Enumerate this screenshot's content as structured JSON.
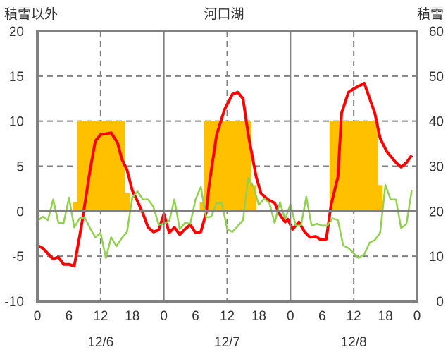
{
  "chart_data": {
    "type": "line",
    "title": "河口湖",
    "ylabel_left": "積雪以外",
    "ylabel_right": "積雪",
    "ylim_left": [
      -10,
      20
    ],
    "ylim_right": [
      0,
      60
    ],
    "yticks_left": [
      "20",
      "15",
      "10",
      "5",
      "0",
      "-5",
      "-10"
    ],
    "yticks_right": [
      "60",
      "50",
      "40",
      "30",
      "20",
      "10",
      "0"
    ],
    "x_range_hours": [
      0,
      72
    ],
    "xtick_labels": [
      "0",
      "6",
      "12",
      "18",
      "0",
      "6",
      "12",
      "18",
      "0",
      "6",
      "12",
      "18",
      "0"
    ],
    "date_labels": [
      "12/6",
      "12/7",
      "12/8"
    ],
    "grid": true,
    "colors": {
      "temperature": "#ff0000",
      "other": "#92d050",
      "bars": "#ffc000",
      "snow": "#7030a0",
      "axis": "#808080"
    },
    "bars": [
      {
        "start": 6.7,
        "end": 7.6,
        "value": 1
      },
      {
        "start": 7.6,
        "end": 16.6,
        "value": 10
      },
      {
        "start": 16.6,
        "end": 17.5,
        "value": 2
      },
      {
        "start": 30.8,
        "end": 31.6,
        "value": 1
      },
      {
        "start": 31.6,
        "end": 40.5,
        "value": 10
      },
      {
        "start": 40.5,
        "end": 41.5,
        "value": 2.9
      },
      {
        "start": 55.4,
        "end": 64.5,
        "value": 10
      },
      {
        "start": 64.5,
        "end": 65.4,
        "value": 2.9
      }
    ],
    "series": [
      {
        "name": "red",
        "x": [
          0,
          1,
          3,
          4,
          5,
          6,
          7,
          8.4,
          10,
          11,
          12,
          14,
          15.2,
          16,
          17,
          18,
          19,
          20,
          21,
          22,
          23,
          24,
          25,
          26,
          27,
          28,
          29,
          30,
          31,
          32,
          32.6,
          34,
          35.5,
          37,
          38,
          39,
          40,
          41.5,
          42.4,
          43.7,
          45,
          46,
          47,
          47.5,
          48.4,
          49.6,
          50.7,
          51.7,
          52.8,
          53.8,
          54.8,
          55.7,
          57,
          57.7,
          59,
          60,
          62,
          64,
          65,
          66.3,
          68,
          69,
          70,
          71
        ],
        "y": [
          -3.8,
          -4.1,
          -5.3,
          -5.1,
          -5.9,
          -5.9,
          -6.1,
          -1.5,
          4.6,
          7.8,
          8.5,
          8.7,
          7.6,
          5.8,
          4.6,
          2.3,
          1.1,
          -0.2,
          -1.8,
          -2.3,
          -2.1,
          -0.3,
          -2.4,
          -1.8,
          -2.6,
          -2,
          -1.5,
          -2.4,
          -2.3,
          -0.2,
          3,
          8.5,
          11.3,
          13,
          13.2,
          12.5,
          8.5,
          3.8,
          2,
          1.3,
          0.9,
          -0.4,
          -1.2,
          -0.9,
          -2,
          -1.2,
          -2.3,
          -2.9,
          -2.8,
          -3.2,
          -3.1,
          0.7,
          3.8,
          10.9,
          13.2,
          13.6,
          14.2,
          10.9,
          8.1,
          6.6,
          5.4,
          4.9,
          5.4,
          6.2
        ]
      },
      {
        "name": "green",
        "x": [
          0,
          1,
          2,
          3,
          4,
          5,
          6,
          7,
          8,
          9,
          10,
          11,
          12,
          13,
          14,
          15,
          16,
          17,
          18,
          19,
          20,
          21,
          22,
          23,
          24,
          25,
          26,
          27,
          28,
          29,
          30,
          31,
          32,
          33,
          34,
          35,
          36,
          37,
          39,
          40,
          41,
          42,
          43,
          44,
          45,
          46,
          47,
          48,
          49,
          50,
          51,
          52,
          53,
          54,
          55,
          56,
          57,
          58,
          59,
          60.9,
          62,
          63,
          64,
          65,
          66,
          67,
          68,
          69,
          70,
          71
        ],
        "y": [
          -1.1,
          -0.6,
          -1,
          1.3,
          -1.3,
          -1.3,
          1.5,
          -1.8,
          -0.8,
          -0.7,
          -1.9,
          -2.9,
          -2.4,
          -5.2,
          -2.9,
          -3.9,
          -3,
          -2.3,
          1.5,
          2.2,
          1.3,
          1.3,
          0.5,
          -1.5,
          -1.4,
          -1.1,
          1.3,
          -2,
          -1.3,
          -1.4,
          1.3,
          2.7,
          -0.7,
          -0.6,
          0.9,
          0.9,
          -2,
          -2.3,
          -1,
          3.7,
          2.7,
          0.7,
          1.4,
          0.9,
          -1.3,
          1,
          -0.9,
          0.8,
          -1.6,
          -1.6,
          1.6,
          -1.6,
          -1.4,
          -1.6,
          -1.6,
          -0.8,
          -1,
          -3.8,
          -4.1,
          -5.2,
          -4.8,
          -3.5,
          -3.2,
          -2.4,
          2.9,
          1.3,
          1.3,
          -1.9,
          -1.4,
          2.3
        ]
      },
      {
        "name": "purple",
        "axis": "right",
        "x": [
          0,
          72
        ],
        "y": [
          0,
          0
        ]
      }
    ]
  }
}
